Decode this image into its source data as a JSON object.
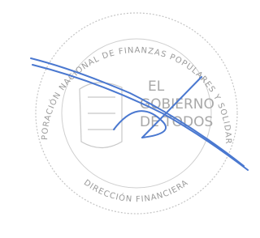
{
  "stamp": {
    "top_text": "CORPORACIÓN NACIONAL DE FINANZAS POPULARES Y SOLIDARIAS",
    "center_lines": [
      "EL",
      "GOBIERNO",
      "DE TODOS"
    ],
    "bottom_text": "DIRECCIÓN FINANCIERA"
  }
}
